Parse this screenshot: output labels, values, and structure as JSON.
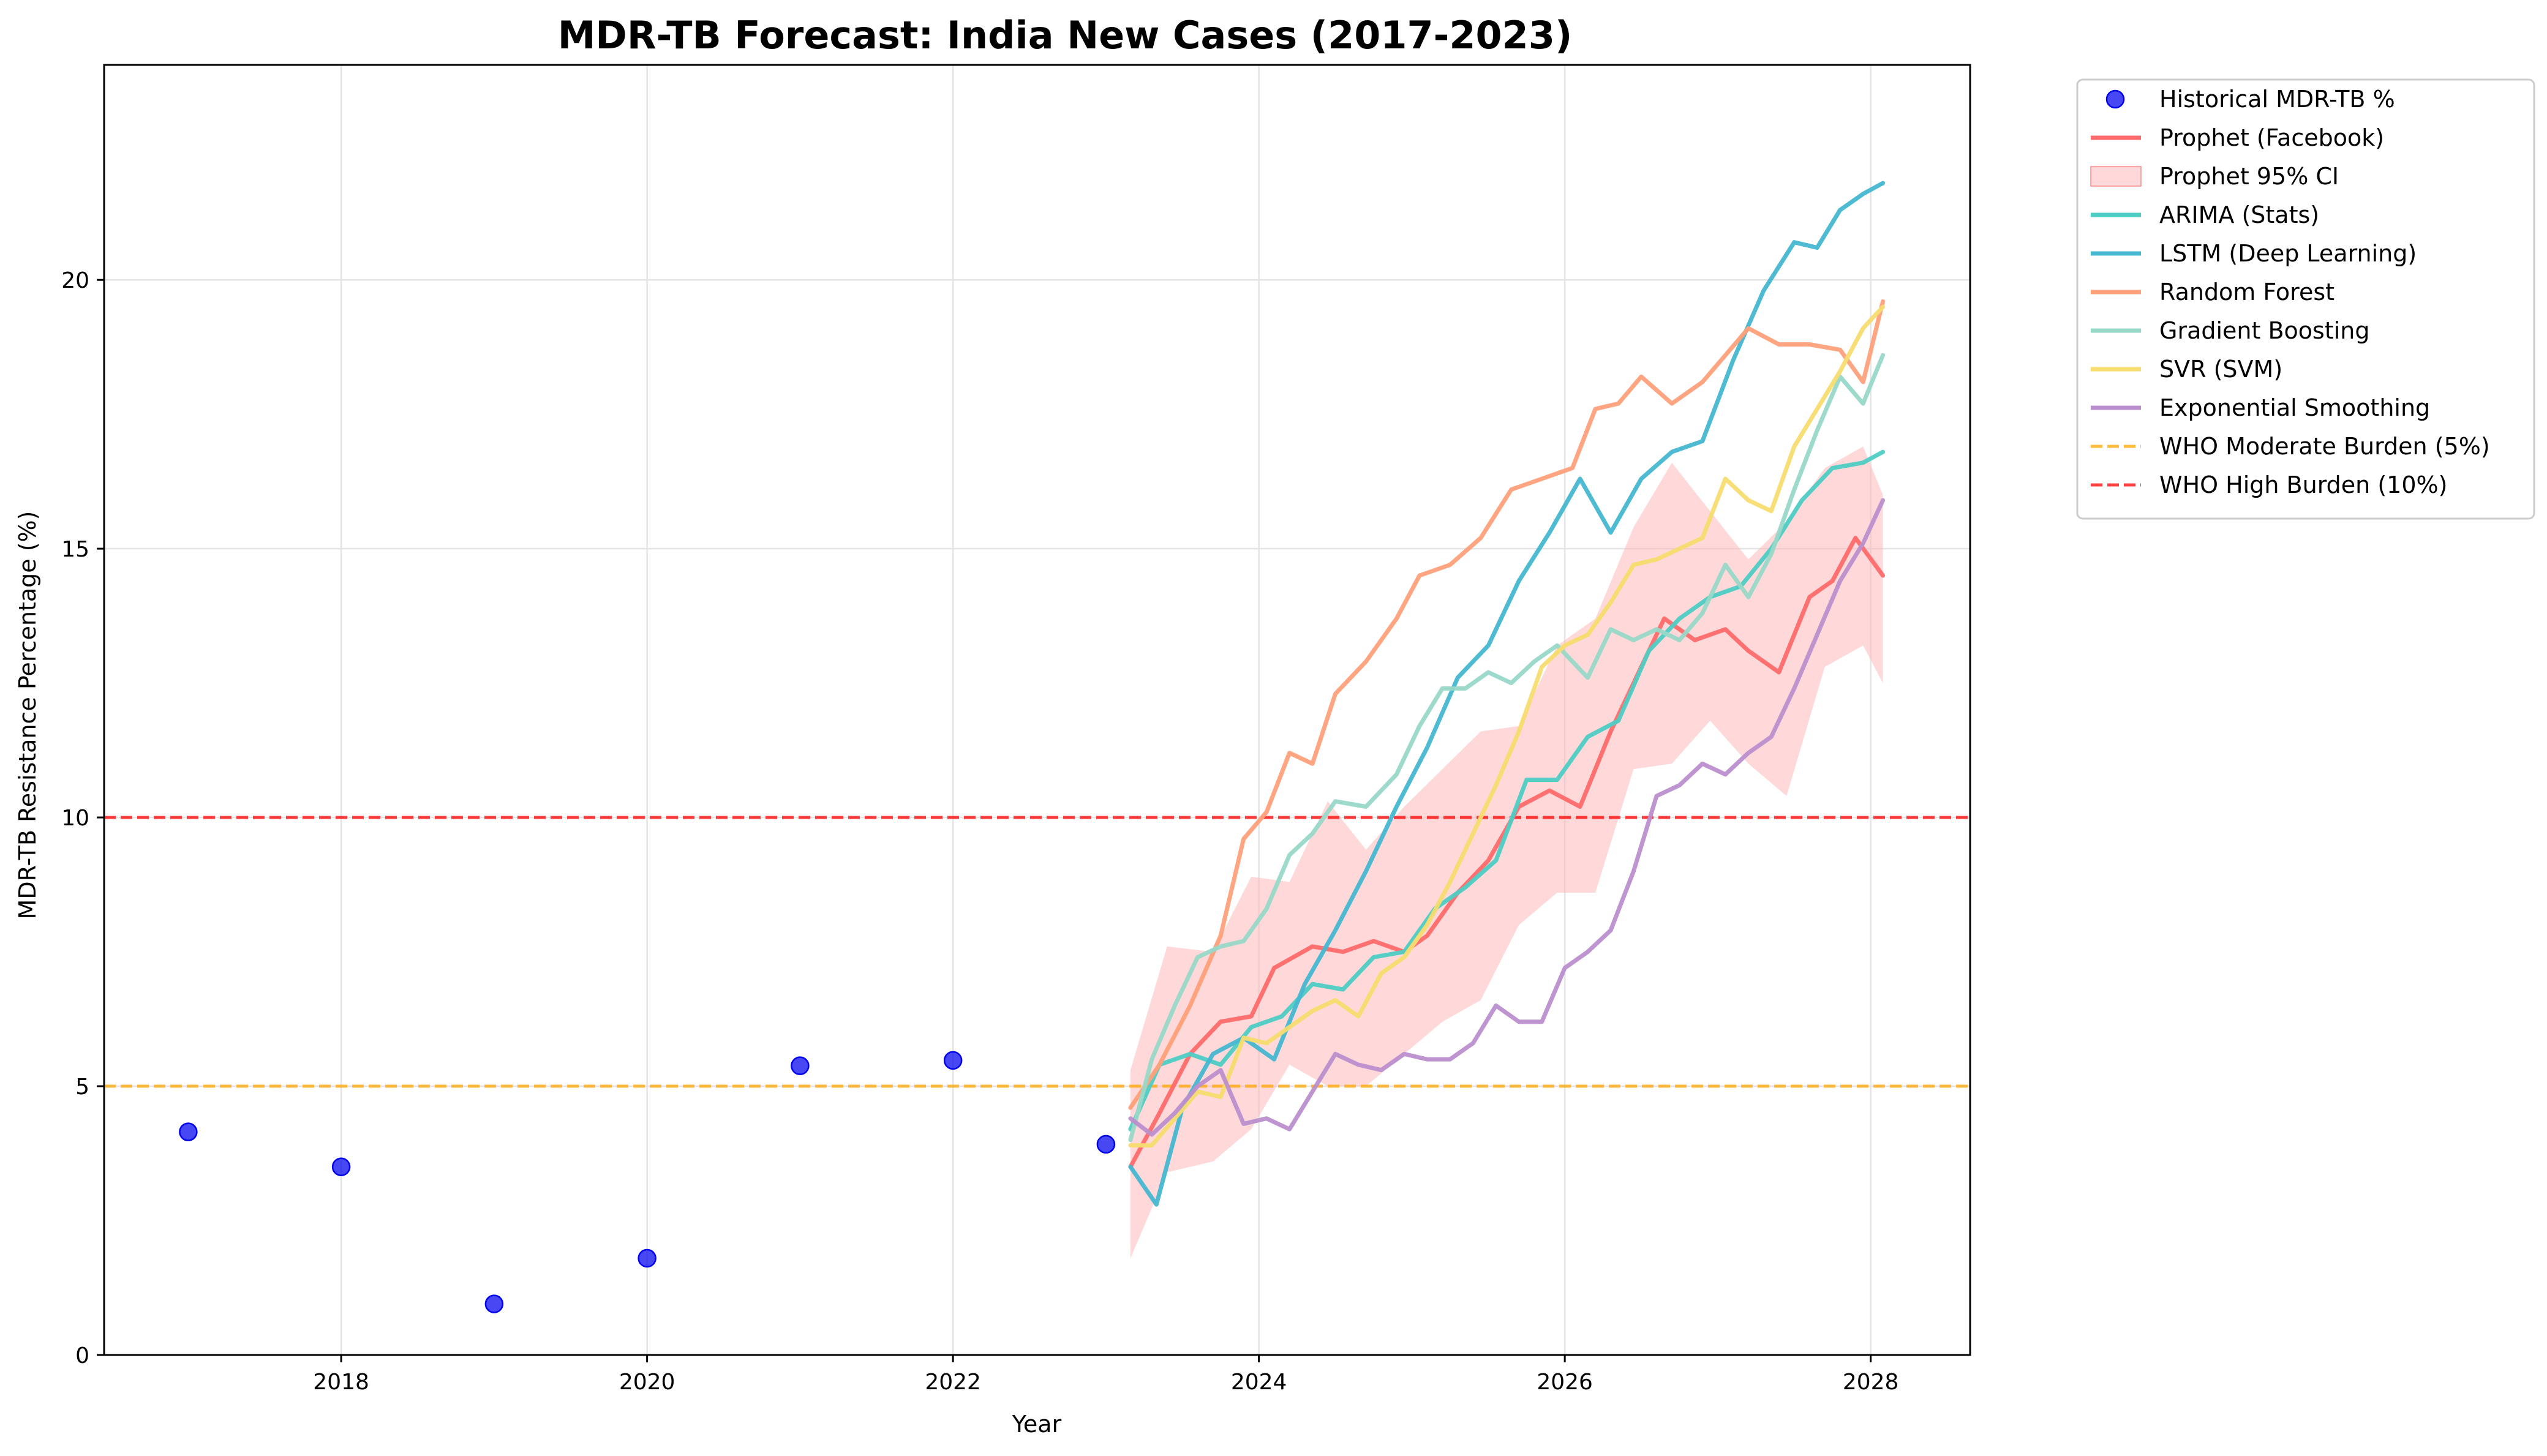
{
  "chart_data": {
    "type": "line",
    "title": "MDR-TB Forecast: India New Cases (2017-2023)",
    "xlabel": "Year",
    "ylabel": "MDR-TB Resistance Percentage (%)",
    "xlim": [
      2016.45,
      2028.65
    ],
    "ylim": [
      0,
      24
    ],
    "xticks": [
      2018,
      2020,
      2022,
      2024,
      2026,
      2028
    ],
    "yticks": [
      0,
      5,
      10,
      15,
      20
    ],
    "grid": true,
    "legend_position": "outside-top-right",
    "historical": {
      "name": "Historical MDR-TB %",
      "color": "#0000ee",
      "points": [
        {
          "x": 2017,
          "y": 4.15
        },
        {
          "x": 2018,
          "y": 3.5
        },
        {
          "x": 2019,
          "y": 0.95
        },
        {
          "x": 2020,
          "y": 1.8
        },
        {
          "x": 2021,
          "y": 5.38
        },
        {
          "x": 2022,
          "y": 5.48
        },
        {
          "x": 2023,
          "y": 3.92
        }
      ]
    },
    "confidence_band": {
      "name": "Prophet 95% CI",
      "color": "#ffb3b3",
      "x": [
        2023.16,
        2023.4,
        2023.7,
        2023.95,
        2024.2,
        2024.45,
        2024.7,
        2024.95,
        2025.2,
        2025.45,
        2025.7,
        2025.95,
        2026.2,
        2026.45,
        2026.7,
        2026.95,
        2027.2,
        2027.45,
        2027.7,
        2027.95,
        2028.08
      ],
      "upper": [
        5.3,
        7.6,
        7.5,
        8.9,
        8.8,
        10.3,
        9.4,
        10.2,
        10.9,
        11.6,
        11.7,
        13.2,
        13.7,
        15.4,
        16.6,
        15.7,
        14.8,
        15.5,
        16.5,
        16.9,
        16.0
      ],
      "lower": [
        1.8,
        3.4,
        3.6,
        4.2,
        5.4,
        5.0,
        5.0,
        5.6,
        6.2,
        6.6,
        8.0,
        8.6,
        8.6,
        10.9,
        11.0,
        11.8,
        11.0,
        10.4,
        12.8,
        13.2,
        12.5
      ]
    },
    "series": [
      {
        "name": "Prophet (Facebook)",
        "color": "#ff6b6b",
        "x": [
          2023.16,
          2023.35,
          2023.55,
          2023.75,
          2023.95,
          2024.1,
          2024.35,
          2024.55,
          2024.75,
          2024.95,
          2025.1,
          2025.3,
          2025.5,
          2025.7,
          2025.9,
          2026.1,
          2026.3,
          2026.5,
          2026.65,
          2026.85,
          2027.05,
          2027.2,
          2027.4,
          2027.6,
          2027.75,
          2027.9,
          2028.08
        ],
        "values": [
          3.5,
          4.5,
          5.6,
          6.2,
          6.3,
          7.2,
          7.6,
          7.5,
          7.7,
          7.5,
          7.8,
          8.6,
          9.2,
          10.2,
          10.5,
          10.2,
          11.6,
          12.8,
          13.7,
          13.3,
          13.5,
          13.1,
          12.7,
          14.1,
          14.4,
          15.2,
          14.5
        ]
      },
      {
        "name": "ARIMA (Stats)",
        "color": "#4ecdc4",
        "x": [
          2023.16,
          2023.35,
          2023.55,
          2023.75,
          2023.95,
          2024.15,
          2024.35,
          2024.55,
          2024.75,
          2024.95,
          2025.15,
          2025.35,
          2025.55,
          2025.75,
          2025.95,
          2026.15,
          2026.35,
          2026.55,
          2026.75,
          2026.95,
          2027.15,
          2027.35,
          2027.55,
          2027.75,
          2027.95,
          2028.08
        ],
        "values": [
          4.2,
          5.4,
          5.6,
          5.4,
          6.1,
          6.3,
          6.9,
          6.8,
          7.4,
          7.5,
          8.3,
          8.7,
          9.2,
          10.7,
          10.7,
          11.5,
          11.8,
          13.1,
          13.7,
          14.1,
          14.3,
          15.0,
          15.9,
          16.5,
          16.6,
          16.8
        ]
      },
      {
        "name": "LSTM (Deep Learning)",
        "color": "#45b7d1",
        "x": [
          2023.16,
          2023.33,
          2023.5,
          2023.7,
          2023.9,
          2024.1,
          2024.3,
          2024.5,
          2024.7,
          2024.9,
          2025.1,
          2025.3,
          2025.5,
          2025.7,
          2025.9,
          2026.1,
          2026.3,
          2026.5,
          2026.7,
          2026.9,
          2027.1,
          2027.3,
          2027.5,
          2027.65,
          2027.8,
          2027.95,
          2028.08
        ],
        "values": [
          3.5,
          2.8,
          4.6,
          5.6,
          5.9,
          5.5,
          6.9,
          7.9,
          9.0,
          10.2,
          11.3,
          12.6,
          13.2,
          14.4,
          15.3,
          16.3,
          15.3,
          16.3,
          16.8,
          17.0,
          18.5,
          19.8,
          20.7,
          20.6,
          21.3,
          21.6,
          21.8
        ]
      },
      {
        "name": "Random Forest",
        "color": "#ffa07a",
        "x": [
          2023.16,
          2023.35,
          2023.55,
          2023.75,
          2023.9,
          2024.05,
          2024.2,
          2024.35,
          2024.5,
          2024.7,
          2024.9,
          2025.05,
          2025.25,
          2025.45,
          2025.65,
          2025.85,
          2026.05,
          2026.2,
          2026.35,
          2026.5,
          2026.7,
          2026.9,
          2027.05,
          2027.2,
          2027.4,
          2027.6,
          2027.8,
          2027.95,
          2028.08
        ],
        "values": [
          4.6,
          5.4,
          6.5,
          7.8,
          9.6,
          10.1,
          11.2,
          11.0,
          12.3,
          12.9,
          13.7,
          14.5,
          14.7,
          15.2,
          16.1,
          16.3,
          16.5,
          17.6,
          17.7,
          18.2,
          17.7,
          18.1,
          18.6,
          19.1,
          18.8,
          18.8,
          18.7,
          18.1,
          19.6
        ]
      },
      {
        "name": "Gradient Boosting",
        "color": "#98d8c8",
        "x": [
          2023.16,
          2023.3,
          2023.45,
          2023.6,
          2023.75,
          2023.9,
          2024.05,
          2024.2,
          2024.35,
          2024.5,
          2024.7,
          2024.9,
          2025.05,
          2025.2,
          2025.35,
          2025.5,
          2025.65,
          2025.8,
          2025.95,
          2026.15,
          2026.3,
          2026.45,
          2026.6,
          2026.75,
          2026.9,
          2027.05,
          2027.2,
          2027.35,
          2027.5,
          2027.65,
          2027.8,
          2027.95,
          2028.08
        ],
        "values": [
          4.0,
          5.5,
          6.5,
          7.4,
          7.6,
          7.7,
          8.3,
          9.3,
          9.7,
          10.3,
          10.2,
          10.8,
          11.7,
          12.4,
          12.4,
          12.7,
          12.5,
          12.9,
          13.2,
          12.6,
          13.5,
          13.3,
          13.5,
          13.3,
          13.8,
          14.7,
          14.1,
          14.9,
          16.1,
          17.2,
          18.2,
          17.7,
          18.6
        ]
      },
      {
        "name": "SVR (SVM)",
        "color": "#f7dc6f",
        "x": [
          2023.16,
          2023.3,
          2023.45,
          2023.6,
          2023.75,
          2023.9,
          2024.05,
          2024.2,
          2024.35,
          2024.5,
          2024.65,
          2024.8,
          2024.95,
          2025.1,
          2025.25,
          2025.4,
          2025.55,
          2025.7,
          2025.85,
          2026.0,
          2026.15,
          2026.3,
          2026.45,
          2026.6,
          2026.75,
          2026.9,
          2027.05,
          2027.2,
          2027.35,
          2027.5,
          2027.65,
          2027.8,
          2027.95,
          2028.08
        ],
        "values": [
          3.9,
          3.9,
          4.4,
          4.9,
          4.8,
          5.9,
          5.8,
          6.1,
          6.4,
          6.6,
          6.3,
          7.1,
          7.4,
          8.0,
          8.8,
          9.7,
          10.6,
          11.6,
          12.8,
          13.2,
          13.4,
          14.0,
          14.7,
          14.8,
          15.0,
          15.2,
          16.3,
          15.9,
          15.7,
          16.9,
          17.6,
          18.3,
          19.1,
          19.5
        ]
      },
      {
        "name": "Exponential Smoothing",
        "color": "#bb8fce",
        "x": [
          2023.16,
          2023.3,
          2023.45,
          2023.6,
          2023.75,
          2023.9,
          2024.05,
          2024.2,
          2024.35,
          2024.5,
          2024.65,
          2024.8,
          2024.95,
          2025.1,
          2025.25,
          2025.4,
          2025.55,
          2025.7,
          2025.85,
          2026.0,
          2026.15,
          2026.3,
          2026.45,
          2026.6,
          2026.75,
          2026.9,
          2027.05,
          2027.2,
          2027.35,
          2027.5,
          2027.65,
          2027.8,
          2027.95,
          2028.08
        ],
        "values": [
          4.4,
          4.1,
          4.5,
          5.0,
          5.3,
          4.3,
          4.4,
          4.2,
          4.9,
          5.6,
          5.4,
          5.3,
          5.6,
          5.5,
          5.5,
          5.8,
          6.5,
          6.2,
          6.2,
          7.2,
          7.5,
          7.9,
          9.0,
          10.4,
          10.6,
          11.0,
          10.8,
          11.2,
          11.5,
          12.4,
          13.4,
          14.4,
          15.1,
          15.9
        ]
      }
    ],
    "reference_lines": [
      {
        "name": "WHO Moderate Burden (5%)",
        "y": 5,
        "color": "#ffa500"
      },
      {
        "name": "WHO High Burden (10%)",
        "y": 10,
        "color": "#ff0000"
      }
    ],
    "legend": [
      {
        "key": "historical",
        "label": "Historical MDR-TB %",
        "color": "#0000ee"
      },
      {
        "key": "prophet",
        "label": "Prophet (Facebook)",
        "color": "#ff6b6b"
      },
      {
        "key": "ci",
        "label": "Prophet 95% CI",
        "color": "#ffb3b3"
      },
      {
        "key": "arima",
        "label": "ARIMA (Stats)",
        "color": "#4ecdc4"
      },
      {
        "key": "lstm",
        "label": "LSTM (Deep Learning)",
        "color": "#45b7d1"
      },
      {
        "key": "rf",
        "label": "Random Forest",
        "color": "#ffa07a"
      },
      {
        "key": "gb",
        "label": "Gradient Boosting",
        "color": "#98d8c8"
      },
      {
        "key": "svr",
        "label": "SVR (SVM)",
        "color": "#f7dc6f"
      },
      {
        "key": "es",
        "label": "Exponential Smoothing",
        "color": "#bb8fce"
      },
      {
        "key": "who5",
        "label": "WHO Moderate Burden (5%)",
        "color": "#ffa500"
      },
      {
        "key": "who10",
        "label": "WHO High Burden (10%)",
        "color": "#ff0000"
      }
    ]
  }
}
